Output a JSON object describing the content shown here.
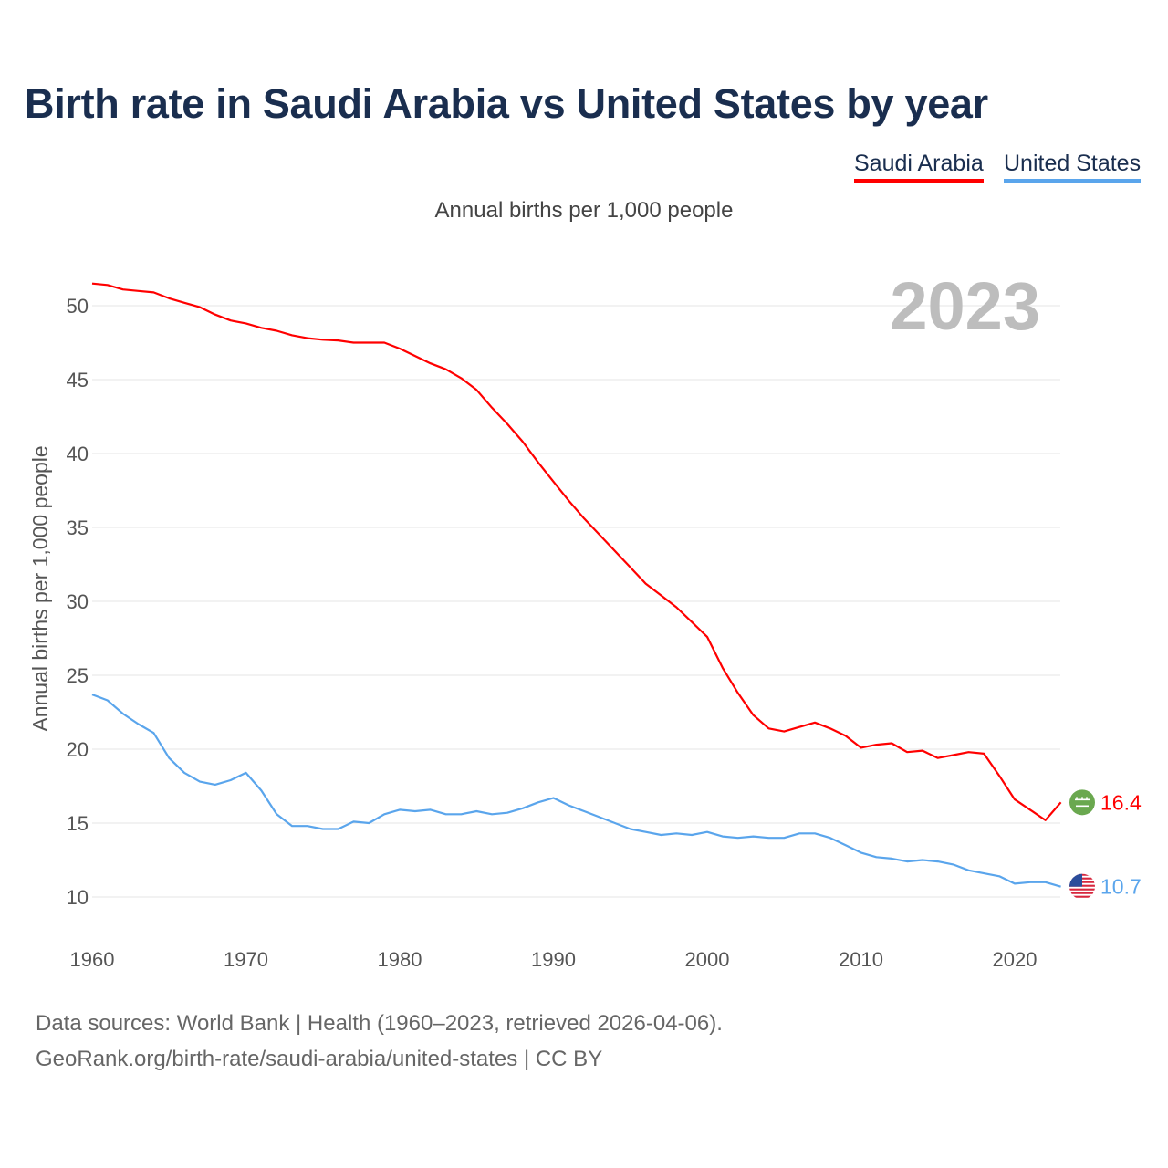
{
  "title": "Birth rate in Saudi Arabia vs United States by year",
  "legend": {
    "saudi": "Saudi Arabia",
    "us": "United States"
  },
  "subtitle": "Annual births per 1,000 people",
  "source_line1": "Data sources: World Bank | Health (1960–2023, retrieved 2026-04-06).",
  "source_line2": "GeoRank.org/birth-rate/saudi-arabia/united-states | CC BY",
  "chart_data": {
    "type": "line",
    "title": "Birth rate in Saudi Arabia vs United States by year",
    "ylabel": "Annual births per 1,000 people",
    "xlabel": "",
    "year_label": "2023",
    "xlim": [
      1960,
      2023
    ],
    "ylim": [
      8,
      52
    ],
    "x_ticks": [
      1960,
      1970,
      1980,
      1990,
      2000,
      2010,
      2020
    ],
    "y_ticks": [
      10,
      15,
      20,
      25,
      30,
      35,
      40,
      45,
      50
    ],
    "grid": true,
    "legend_position": "top-right",
    "x_start": 1960,
    "series": [
      {
        "name": "Saudi Arabia",
        "color": "#ff0000",
        "end_label": "16.4",
        "flag": "saudi-arabia-flag",
        "values": [
          51.5,
          51.4,
          51.1,
          51.0,
          50.9,
          50.5,
          50.2,
          49.9,
          49.4,
          49.0,
          48.8,
          48.5,
          48.3,
          48.0,
          47.8,
          47.7,
          47.65,
          47.5,
          47.5,
          47.5,
          47.1,
          46.6,
          46.1,
          45.7,
          45.1,
          44.3,
          43.1,
          42.0,
          40.8,
          39.4,
          38.1,
          36.8,
          35.6,
          34.5,
          33.4,
          32.3,
          31.2,
          30.4,
          29.6,
          28.6,
          27.6,
          25.5,
          23.8,
          22.3,
          21.4,
          21.2,
          21.5,
          21.8,
          21.4,
          20.9,
          20.1,
          20.3,
          20.4,
          19.8,
          19.9,
          19.4,
          19.6,
          19.8,
          19.7,
          18.2,
          16.6,
          15.9,
          15.2,
          16.4
        ]
      },
      {
        "name": "United States",
        "color": "#5aa5ec",
        "end_label": "10.7",
        "flag": "united-states-flag",
        "values": [
          23.7,
          23.3,
          22.4,
          21.7,
          21.1,
          19.4,
          18.4,
          17.8,
          17.6,
          17.9,
          18.4,
          17.2,
          15.6,
          14.8,
          14.8,
          14.6,
          14.6,
          15.1,
          15.0,
          15.6,
          15.9,
          15.8,
          15.9,
          15.6,
          15.6,
          15.8,
          15.6,
          15.7,
          16.0,
          16.4,
          16.7,
          16.2,
          15.8,
          15.4,
          15.0,
          14.6,
          14.4,
          14.2,
          14.3,
          14.2,
          14.4,
          14.1,
          14.0,
          14.1,
          14.0,
          14.0,
          14.3,
          14.3,
          14.0,
          13.5,
          13.0,
          12.7,
          12.6,
          12.4,
          12.5,
          12.4,
          12.2,
          11.8,
          11.6,
          11.4,
          10.9,
          11.0,
          11.0,
          10.7
        ]
      }
    ]
  }
}
